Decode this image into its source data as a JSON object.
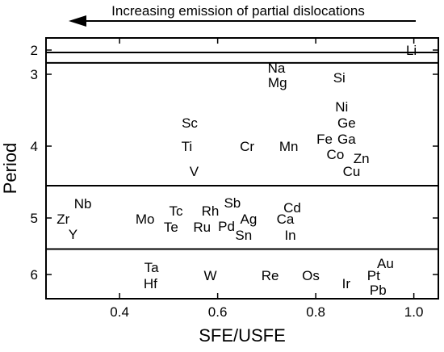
{
  "chart_data": {
    "type": "scatter",
    "banner": "Increasing emission of partial dislocations",
    "xlabel": "SFE/USFE",
    "ylabel": "Period",
    "xlim": [
      0.25,
      1.05
    ],
    "x_ticks": [
      "0.4",
      "0.6",
      "0.8",
      "1.0"
    ],
    "x_tick_values": [
      0.4,
      0.6,
      0.8,
      1.0
    ],
    "y_ticks": [
      "2",
      "3",
      "4",
      "5",
      "6"
    ],
    "y_tick_values": [
      2,
      3,
      4,
      5,
      6
    ],
    "period_bands": [
      {
        "period": 2,
        "range": [
          1.76,
          2.1
        ]
      },
      {
        "period": 3,
        "range": [
          2.1,
          2.53
        ]
      },
      {
        "period": 4,
        "range": [
          2.53,
          4.55
        ]
      },
      {
        "period": 5,
        "range": [
          4.55,
          5.55
        ]
      },
      {
        "period": 6,
        "range": [
          5.55,
          6.35
        ]
      }
    ],
    "points": [
      {
        "label": "Li",
        "x": 0.995,
        "period": 2
      },
      {
        "label": "Na",
        "x": 0.72,
        "period": 3
      },
      {
        "label": "Mg",
        "x": 0.722,
        "period": 3
      },
      {
        "label": "Si",
        "x": 0.848,
        "period": 3
      },
      {
        "label": "Sc",
        "x": 0.543,
        "period": 4
      },
      {
        "label": "Ti",
        "x": 0.537,
        "period": 4
      },
      {
        "label": "V",
        "x": 0.552,
        "period": 4
      },
      {
        "label": "Cr",
        "x": 0.66,
        "period": 4
      },
      {
        "label": "Mn",
        "x": 0.745,
        "period": 4
      },
      {
        "label": "Ni",
        "x": 0.853,
        "period": 4
      },
      {
        "label": "Ge",
        "x": 0.863,
        "period": 4
      },
      {
        "label": "Fe",
        "x": 0.818,
        "period": 4
      },
      {
        "label": "Ga",
        "x": 0.863,
        "period": 4
      },
      {
        "label": "Co",
        "x": 0.84,
        "period": 4
      },
      {
        "label": "Zn",
        "x": 0.893,
        "period": 4
      },
      {
        "label": "Cu",
        "x": 0.873,
        "period": 4
      },
      {
        "label": "Nb",
        "x": 0.325,
        "period": 5
      },
      {
        "label": "Zr",
        "x": 0.285,
        "period": 5
      },
      {
        "label": "Y",
        "x": 0.305,
        "period": 5
      },
      {
        "label": "Mo",
        "x": 0.452,
        "period": 5
      },
      {
        "label": "Tc",
        "x": 0.515,
        "period": 5
      },
      {
        "label": "Te",
        "x": 0.505,
        "period": 5
      },
      {
        "label": "Rh",
        "x": 0.585,
        "period": 5
      },
      {
        "label": "Ru",
        "x": 0.568,
        "period": 5
      },
      {
        "label": "Sb",
        "x": 0.63,
        "period": 5
      },
      {
        "label": "Pd",
        "x": 0.618,
        "period": 5
      },
      {
        "label": "Ag",
        "x": 0.663,
        "period": 5
      },
      {
        "label": "Sn",
        "x": 0.653,
        "period": 5
      },
      {
        "label": "Cd",
        "x": 0.752,
        "period": 5
      },
      {
        "label": "Ca",
        "x": 0.738,
        "period": 5
      },
      {
        "label": "In",
        "x": 0.748,
        "period": 5
      },
      {
        "label": "Ta",
        "x": 0.465,
        "period": 6
      },
      {
        "label": "Hf",
        "x": 0.463,
        "period": 6
      },
      {
        "label": "W",
        "x": 0.585,
        "period": 6
      },
      {
        "label": "Re",
        "x": 0.707,
        "period": 6
      },
      {
        "label": "Os",
        "x": 0.79,
        "period": 6
      },
      {
        "label": "Ir",
        "x": 0.862,
        "period": 6
      },
      {
        "label": "Au",
        "x": 0.942,
        "period": 6
      },
      {
        "label": "Pt",
        "x": 0.918,
        "period": 6
      },
      {
        "label": "Pb",
        "x": 0.927,
        "period": 6
      }
    ],
    "grid": false,
    "legend": "none"
  }
}
